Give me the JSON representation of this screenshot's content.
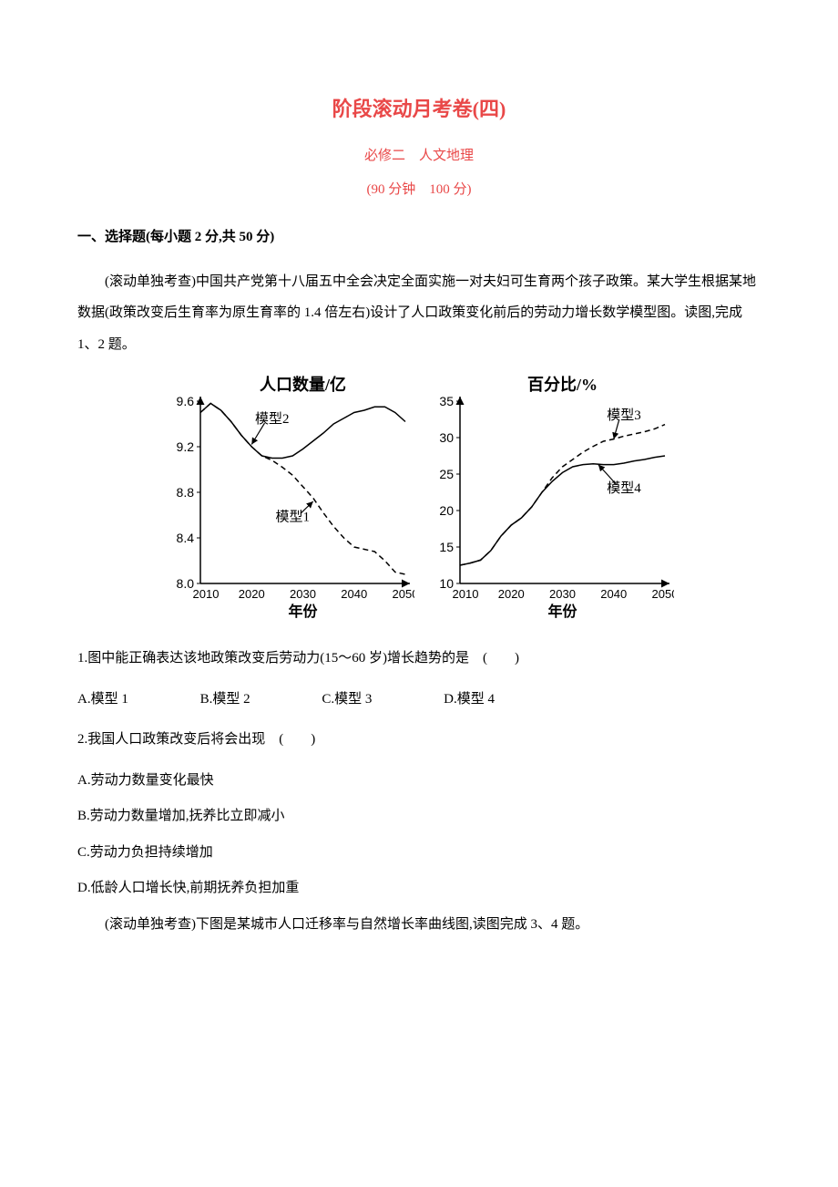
{
  "header": {
    "title": "阶段滚动月考卷(四)",
    "subtitle": "必修二　人文地理",
    "timing": "(90 分钟　100 分)"
  },
  "section1": {
    "heading": "一、选择题(每小题 2 分,共 50 分)",
    "intro": "(滚动单独考查)中国共产党第十八届五中全会决定全面实施一对夫妇可生育两个孩子政策。某大学生根据某地数据(政策改变后生育率为原生育率的 1.4 倍左右)设计了人口政策变化前后的劳动力增长数学模型图。读图,完成 1、2 题。"
  },
  "chart_left": {
    "type": "line",
    "title": "人口数量/亿",
    "title_fontsize": 18,
    "xlabel": "年份",
    "xlabel_fontsize": 16,
    "xlim": [
      2010,
      2050
    ],
    "xtick_values": [
      2010,
      2020,
      2030,
      2040,
      2050
    ],
    "ylim": [
      8.0,
      9.6
    ],
    "ytick_values": [
      8.0,
      8.4,
      8.8,
      9.2,
      9.6
    ],
    "background_color": "#ffffff",
    "axis_color": "#000000",
    "series": [
      {
        "name": "模型1",
        "label": "模型1",
        "style": "dashed",
        "color": "#000000",
        "line_width": 1.5,
        "label_pos": {
          "x": 2028,
          "y": 8.55
        },
        "arrow_to": {
          "x": 2032,
          "y": 8.72
        },
        "data": [
          {
            "x": 2010,
            "y": 9.5
          },
          {
            "x": 2012,
            "y": 9.58
          },
          {
            "x": 2014,
            "y": 9.52
          },
          {
            "x": 2016,
            "y": 9.42
          },
          {
            "x": 2018,
            "y": 9.3
          },
          {
            "x": 2020,
            "y": 9.2
          },
          {
            "x": 2022,
            "y": 9.12
          },
          {
            "x": 2024,
            "y": 9.08
          },
          {
            "x": 2026,
            "y": 9.02
          },
          {
            "x": 2028,
            "y": 8.95
          },
          {
            "x": 2030,
            "y": 8.85
          },
          {
            "x": 2032,
            "y": 8.75
          },
          {
            "x": 2034,
            "y": 8.62
          },
          {
            "x": 2036,
            "y": 8.5
          },
          {
            "x": 2038,
            "y": 8.4
          },
          {
            "x": 2040,
            "y": 8.32
          },
          {
            "x": 2042,
            "y": 8.3
          },
          {
            "x": 2044,
            "y": 8.28
          },
          {
            "x": 2046,
            "y": 8.2
          },
          {
            "x": 2048,
            "y": 8.1
          },
          {
            "x": 2050,
            "y": 8.08
          }
        ]
      },
      {
        "name": "模型2",
        "label": "模型2",
        "style": "solid",
        "color": "#000000",
        "line_width": 1.5,
        "label_pos": {
          "x": 2024,
          "y": 9.41
        },
        "arrow_to": {
          "x": 2020,
          "y": 9.22
        },
        "data": [
          {
            "x": 2010,
            "y": 9.5
          },
          {
            "x": 2012,
            "y": 9.58
          },
          {
            "x": 2014,
            "y": 9.52
          },
          {
            "x": 2016,
            "y": 9.42
          },
          {
            "x": 2018,
            "y": 9.3
          },
          {
            "x": 2020,
            "y": 9.2
          },
          {
            "x": 2022,
            "y": 9.12
          },
          {
            "x": 2024,
            "y": 9.1
          },
          {
            "x": 2026,
            "y": 9.1
          },
          {
            "x": 2028,
            "y": 9.12
          },
          {
            "x": 2030,
            "y": 9.18
          },
          {
            "x": 2032,
            "y": 9.25
          },
          {
            "x": 2034,
            "y": 9.32
          },
          {
            "x": 2036,
            "y": 9.4
          },
          {
            "x": 2038,
            "y": 9.45
          },
          {
            "x": 2040,
            "y": 9.5
          },
          {
            "x": 2042,
            "y": 9.52
          },
          {
            "x": 2044,
            "y": 9.55
          },
          {
            "x": 2046,
            "y": 9.55
          },
          {
            "x": 2048,
            "y": 9.5
          },
          {
            "x": 2050,
            "y": 9.42
          }
        ]
      }
    ]
  },
  "chart_right": {
    "type": "line",
    "title": "百分比/%",
    "title_fontsize": 18,
    "xlabel": "年份",
    "xlabel_fontsize": 16,
    "xlim": [
      2010,
      2050
    ],
    "xtick_values": [
      2010,
      2020,
      2030,
      2040,
      2050
    ],
    "ylim": [
      10,
      35
    ],
    "ytick_values": [
      10,
      15,
      20,
      25,
      30,
      35
    ],
    "background_color": "#ffffff",
    "axis_color": "#000000",
    "series": [
      {
        "name": "模型3",
        "label": "模型3",
        "style": "dashed",
        "color": "#000000",
        "line_width": 1.5,
        "label_pos": {
          "x": 2042,
          "y": 32.5
        },
        "arrow_to": {
          "x": 2040,
          "y": 29.8
        },
        "data": [
          {
            "x": 2010,
            "y": 12.5
          },
          {
            "x": 2012,
            "y": 12.8
          },
          {
            "x": 2014,
            "y": 13.2
          },
          {
            "x": 2016,
            "y": 14.5
          },
          {
            "x": 2018,
            "y": 16.5
          },
          {
            "x": 2020,
            "y": 18.0
          },
          {
            "x": 2022,
            "y": 19.0
          },
          {
            "x": 2024,
            "y": 20.5
          },
          {
            "x": 2026,
            "y": 22.5
          },
          {
            "x": 2028,
            "y": 24.5
          },
          {
            "x": 2030,
            "y": 26.0
          },
          {
            "x": 2032,
            "y": 27.0
          },
          {
            "x": 2034,
            "y": 28.0
          },
          {
            "x": 2036,
            "y": 28.8
          },
          {
            "x": 2038,
            "y": 29.5
          },
          {
            "x": 2040,
            "y": 29.8
          },
          {
            "x": 2042,
            "y": 30.2
          },
          {
            "x": 2044,
            "y": 30.5
          },
          {
            "x": 2046,
            "y": 30.8
          },
          {
            "x": 2048,
            "y": 31.2
          },
          {
            "x": 2050,
            "y": 31.8
          }
        ]
      },
      {
        "name": "模型4",
        "label": "模型4",
        "style": "solid",
        "color": "#000000",
        "line_width": 1.5,
        "label_pos": {
          "x": 2042,
          "y": 22.5
        },
        "arrow_to": {
          "x": 2037,
          "y": 26.3
        },
        "data": [
          {
            "x": 2010,
            "y": 12.5
          },
          {
            "x": 2012,
            "y": 12.8
          },
          {
            "x": 2014,
            "y": 13.2
          },
          {
            "x": 2016,
            "y": 14.5
          },
          {
            "x": 2018,
            "y": 16.5
          },
          {
            "x": 2020,
            "y": 18.0
          },
          {
            "x": 2022,
            "y": 19.0
          },
          {
            "x": 2024,
            "y": 20.5
          },
          {
            "x": 2026,
            "y": 22.5
          },
          {
            "x": 2028,
            "y": 24.0
          },
          {
            "x": 2030,
            "y": 25.2
          },
          {
            "x": 2032,
            "y": 26.0
          },
          {
            "x": 2034,
            "y": 26.3
          },
          {
            "x": 2036,
            "y": 26.4
          },
          {
            "x": 2038,
            "y": 26.3
          },
          {
            "x": 2040,
            "y": 26.3
          },
          {
            "x": 2042,
            "y": 26.5
          },
          {
            "x": 2044,
            "y": 26.8
          },
          {
            "x": 2046,
            "y": 27.0
          },
          {
            "x": 2048,
            "y": 27.3
          },
          {
            "x": 2050,
            "y": 27.5
          }
        ]
      }
    ]
  },
  "q1": {
    "text": "1.图中能正确表达该地政策改变后劳动力(15～60 岁)增长趋势的是　(　　)",
    "options": {
      "a": "A.模型 1",
      "b": "B.模型 2",
      "c": "C.模型 3",
      "d": "D.模型 4"
    }
  },
  "q2": {
    "text": "2.我国人口政策改变后将会出现　(　　)",
    "options": {
      "a": "A.劳动力数量变化最快",
      "b": "B.劳动力数量增加,抚养比立即减小",
      "c": "C.劳动力负担持续增加",
      "d": "D.低龄人口增长快,前期抚养负担加重"
    }
  },
  "section2_intro": "(滚动单独考查)下图是某城市人口迁移率与自然增长率曲线图,读图完成 3、4 题。"
}
